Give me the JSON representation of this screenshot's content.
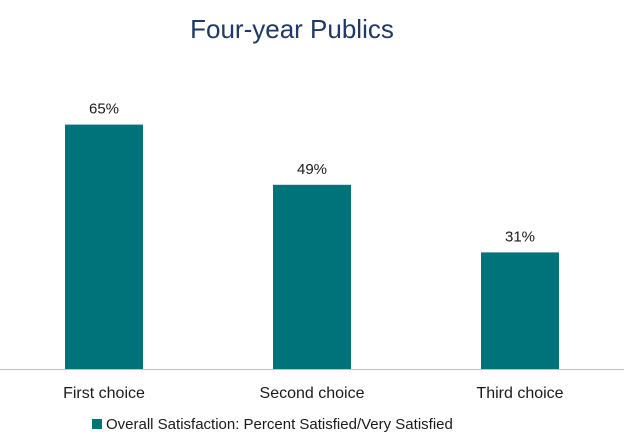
{
  "chart_data": {
    "type": "bar",
    "title": "Four-year Publics",
    "categories": [
      "First choice",
      "Second choice",
      "Third choice"
    ],
    "series": [
      {
        "name": "Overall Satisfaction: Percent Satisfied/Very Satisfied",
        "values": [
          65,
          49,
          31
        ],
        "data_labels": [
          "65%",
          "49%",
          "31%"
        ]
      }
    ],
    "xlabel": "",
    "ylabel": "",
    "ylim": [
      0,
      70
    ],
    "grid": false,
    "legend": "bottom",
    "colors": {
      "bar": "#00727a",
      "title": "#1f3864",
      "text": "#1a1a1a",
      "axis": "#bfbfbf"
    }
  }
}
